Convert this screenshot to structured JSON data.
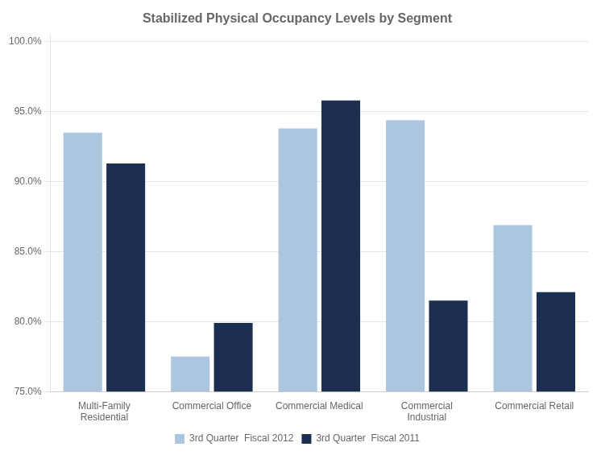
{
  "chart_data": {
    "type": "bar",
    "title": "Stabilized Physical Occupancy Levels by Segment",
    "categories": [
      "Multi-Family\nResidential",
      "Commercial Office",
      "Commercial Medical",
      "Commercial\nIndustrial",
      "Commercial Retail"
    ],
    "series": [
      {
        "name": "3rd Quarter  Fiscal 2012",
        "color": "#adc6e0",
        "values": [
          0.935,
          0.775,
          0.938,
          0.944,
          0.869
        ]
      },
      {
        "name": "3rd Quarter  Fiscal 2011",
        "color": "#1c2f52",
        "values": [
          0.913,
          0.799,
          0.958,
          0.815,
          0.821
        ]
      }
    ],
    "ylim": [
      0.75,
      1.005
    ],
    "yticks": [
      {
        "value": 0.75,
        "label": "75.0%"
      },
      {
        "value": 0.8,
        "label": "80.0%"
      },
      {
        "value": 0.85,
        "label": "85.0%"
      },
      {
        "value": 0.9,
        "label": "90.0%"
      },
      {
        "value": 0.95,
        "label": "95.0%"
      },
      {
        "value": 1.0,
        "label": "100.0%"
      }
    ],
    "grid": true,
    "legend": "bottom"
  }
}
